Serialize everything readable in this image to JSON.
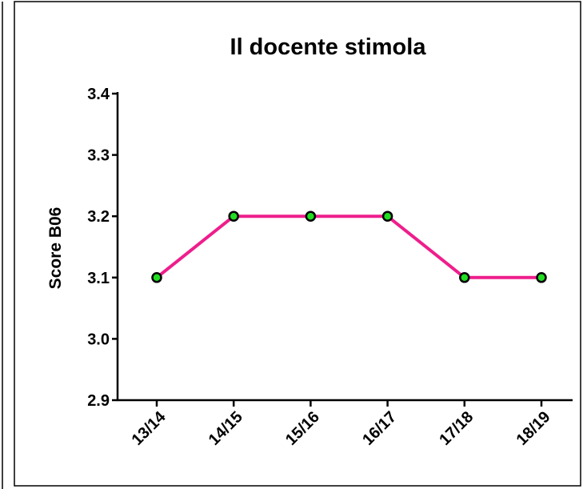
{
  "chart_data": {
    "type": "line",
    "title": "Il docente stimola",
    "y_label": "Score B06",
    "categories": [
      "13/14",
      "14/15",
      "15/16",
      "16/17",
      "17/18",
      "18/19"
    ],
    "series": [
      {
        "name": "Score B06",
        "color": "#ee1e8c",
        "marker_color": "#22dd22",
        "values": [
          3.1,
          3.2,
          3.2,
          3.2,
          3.1,
          3.1
        ]
      }
    ],
    "ylim": [
      2.9,
      3.4
    ],
    "yticks": [
      2.9,
      {
        "value": 3.0,
        "label": "3.0"
      },
      3.1,
      3.2,
      3.3,
      3.4
    ]
  }
}
